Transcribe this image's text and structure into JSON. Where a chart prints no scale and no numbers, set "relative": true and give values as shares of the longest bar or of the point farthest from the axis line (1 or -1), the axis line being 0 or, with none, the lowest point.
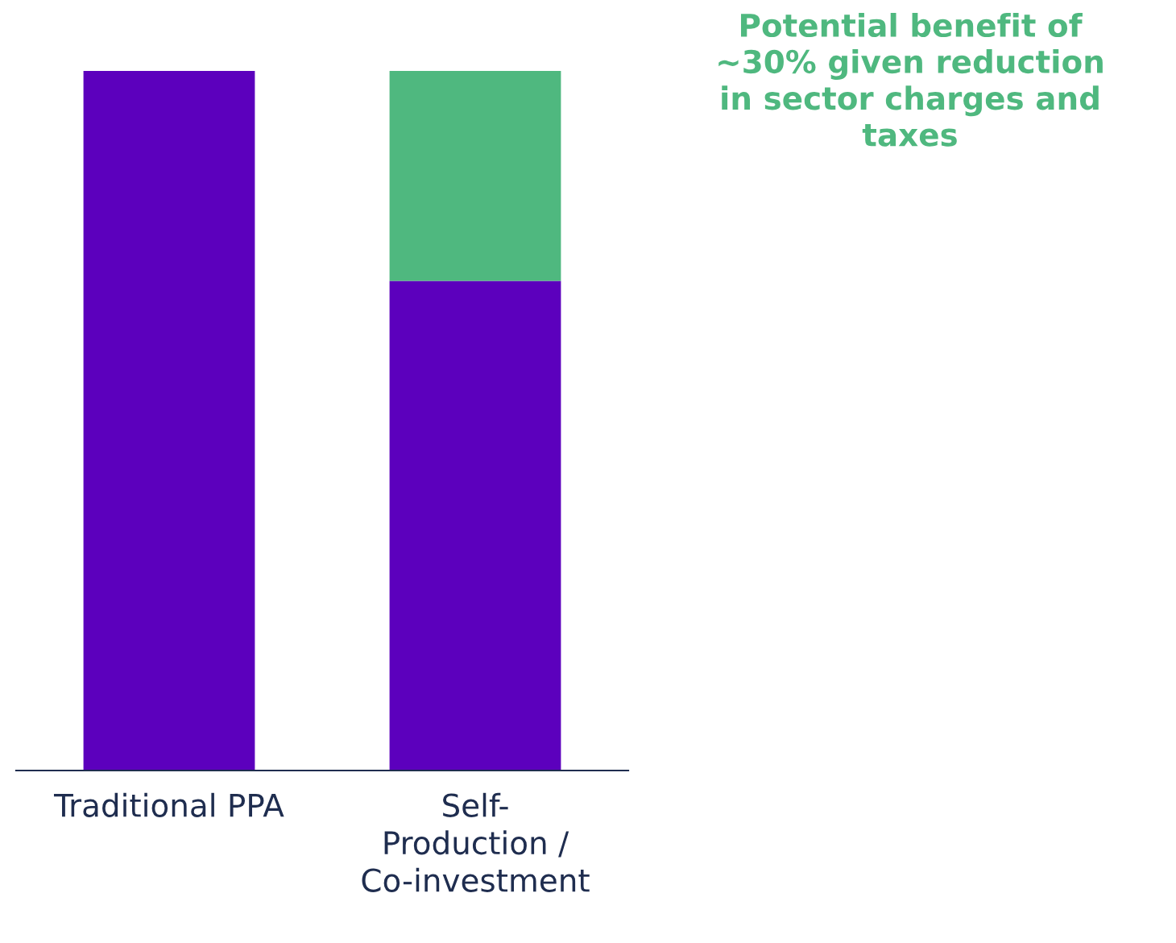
{
  "chart_data": {
    "type": "bar",
    "stacked": true,
    "relative": true,
    "categories": [
      "Traditional PPA",
      "Self-\nProduction /\nCo-investment"
    ],
    "series": [
      {
        "color": "#5c00bd",
        "values": [
          1.0,
          0.7
        ]
      },
      {
        "color": "#4fb87f",
        "values": [
          0,
          0.3
        ]
      }
    ],
    "annotations": [
      "Potential benefit of\n~30% given reduction\nin sector charges and\ntaxes"
    ]
  }
}
